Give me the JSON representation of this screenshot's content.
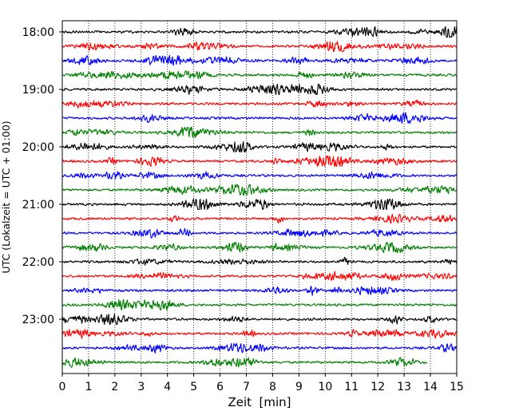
{
  "chart_data": {
    "type": "line",
    "subtype": "helicorder",
    "xlabel": "Zeit  [min]",
    "ylabel": "UTC (Lokalzeit = UTC + 01:00)",
    "xlim": [
      0,
      15
    ],
    "x_ticks": [
      0,
      1,
      2,
      3,
      4,
      5,
      6,
      7,
      8,
      9,
      10,
      11,
      12,
      13,
      14,
      15
    ],
    "y_tick_labels": [
      "18:00",
      "19:00",
      "20:00",
      "21:00",
      "22:00",
      "23:00"
    ],
    "trace_interval_minutes": 15,
    "trace_color_cycle": [
      "#000000",
      "#ff0000",
      "#0000ff",
      "#008000"
    ],
    "traces": [
      {
        "start": "18:00",
        "end_minute": 15
      },
      {
        "start": "18:15",
        "end_minute": 15
      },
      {
        "start": "18:30",
        "end_minute": 15
      },
      {
        "start": "18:45",
        "end_minute": 15
      },
      {
        "start": "19:00",
        "end_minute": 15
      },
      {
        "start": "19:15",
        "end_minute": 15
      },
      {
        "start": "19:30",
        "end_minute": 15
      },
      {
        "start": "19:45",
        "end_minute": 15
      },
      {
        "start": "20:00",
        "end_minute": 15
      },
      {
        "start": "20:15",
        "end_minute": 15
      },
      {
        "start": "20:30",
        "end_minute": 15
      },
      {
        "start": "20:45",
        "end_minute": 15
      },
      {
        "start": "21:00",
        "end_minute": 15
      },
      {
        "start": "21:15",
        "end_minute": 15
      },
      {
        "start": "21:30",
        "end_minute": 15
      },
      {
        "start": "21:45",
        "end_minute": 15
      },
      {
        "start": "22:00",
        "end_minute": 15
      },
      {
        "start": "22:15",
        "end_minute": 15
      },
      {
        "start": "22:30",
        "end_minute": 15
      },
      {
        "start": "22:45",
        "end_minute": 15
      },
      {
        "start": "23:00",
        "end_minute": 15
      },
      {
        "start": "23:15",
        "end_minute": 15
      },
      {
        "start": "23:30",
        "end_minute": 15
      },
      {
        "start": "23:45",
        "end_minute": 13.9
      }
    ],
    "grid": "vertical dotted",
    "legend": "none"
  }
}
